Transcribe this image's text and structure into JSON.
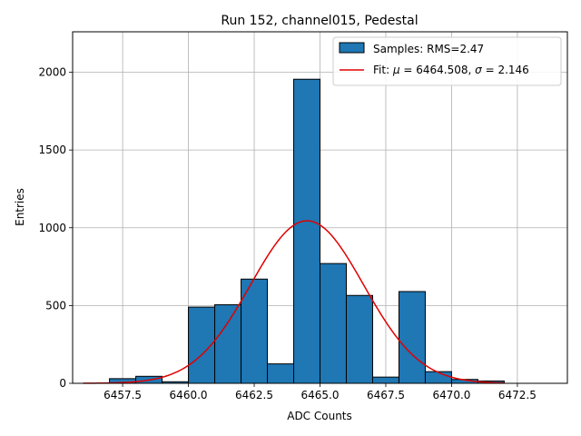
{
  "chart_data": {
    "type": "bar",
    "title": "Run 152, channel015, Pedestal",
    "xlabel": "ADC Counts",
    "ylabel": "Entries",
    "xlim": [
      6455.6,
      6474.4
    ],
    "ylim": [
      0,
      2260
    ],
    "xticks": [
      6457.5,
      6460.0,
      6462.5,
      6465.0,
      6467.5,
      6470.0,
      6472.5
    ],
    "xtick_labels": [
      "6457.5",
      "6460.0",
      "6462.5",
      "6465.0",
      "6467.5",
      "6470.0",
      "6472.5"
    ],
    "yticks": [
      0,
      500,
      1000,
      1500,
      2000
    ],
    "ytick_labels": [
      "0",
      "500",
      "1000",
      "1500",
      "2000"
    ],
    "grid": true,
    "legend_position": "top-right",
    "bin_edges": [
      6456,
      6457,
      6458,
      6459,
      6460,
      6461,
      6462,
      6463,
      6464,
      6465,
      6466,
      6467,
      6468,
      6469,
      6470,
      6471,
      6472,
      6473,
      6474
    ],
    "series": [
      {
        "name": "Samples: RMS=2.47",
        "kind": "histogram",
        "color": "#1f77b4",
        "edgecolor": "#000000",
        "values": [
          0,
          30,
          45,
          10,
          490,
          505,
          670,
          125,
          1955,
          770,
          565,
          40,
          590,
          75,
          25,
          15,
          0,
          0
        ]
      },
      {
        "name_prefix": "Fit: ",
        "name_mu": "μ",
        "name_mid": " = 6464.508, ",
        "name_sigma": "σ",
        "name_suffix": " = 2.146",
        "kind": "gaussian_fit",
        "color": "#e00000",
        "mu": 6464.508,
        "sigma": 2.146,
        "amplitude": 1045,
        "x_range": [
          6456,
          6472
        ]
      }
    ]
  }
}
